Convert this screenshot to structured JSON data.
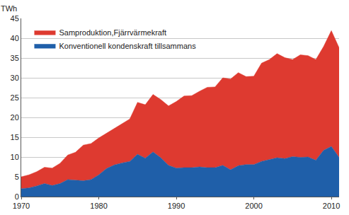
{
  "chart_data": {
    "type": "area",
    "stacked": true,
    "y_label": "TWh",
    "x": [
      1970,
      1971,
      1972,
      1973,
      1974,
      1975,
      1976,
      1977,
      1978,
      1979,
      1980,
      1981,
      1982,
      1983,
      1984,
      1985,
      1986,
      1987,
      1988,
      1989,
      1990,
      1991,
      1992,
      1993,
      1994,
      1995,
      1996,
      1997,
      1998,
      1999,
      2000,
      2001,
      2002,
      2003,
      2004,
      2005,
      2006,
      2007,
      2008,
      2009,
      2010,
      2011
    ],
    "series": [
      {
        "name": "Konventionell kondenskraft tillsammans",
        "color": "#1f5fa9",
        "values": [
          2.0,
          2.2,
          2.7,
          3.3,
          2.8,
          3.3,
          4.3,
          4.1,
          4.0,
          4.3,
          5.5,
          7.1,
          8.0,
          8.5,
          8.9,
          10.7,
          9.7,
          11.3,
          9.8,
          7.9,
          7.2,
          7.3,
          7.3,
          7.5,
          7.3,
          7.3,
          7.9,
          6.8,
          7.8,
          8.1,
          8.1,
          8.9,
          9.3,
          9.8,
          9.6,
          10.1,
          9.9,
          10.0,
          9.2,
          11.7,
          12.7,
          9.9
        ]
      },
      {
        "name": "Samproduktion,Fjärrvärmekraft",
        "color": "#de3a30",
        "values": [
          3.0,
          3.3,
          3.6,
          4.1,
          4.4,
          5.1,
          6.2,
          7.1,
          9.0,
          9.1,
          9.3,
          8.9,
          9.2,
          9.9,
          10.7,
          13.1,
          13.5,
          14.5,
          14.7,
          15.0,
          16.8,
          18.1,
          18.2,
          19.1,
          20.3,
          20.4,
          22.1,
          22.9,
          23.5,
          22.2,
          22.3,
          24.8,
          25.3,
          26.3,
          25.5,
          24.5,
          25.9,
          25.6,
          25.4,
          26.2,
          29.2,
          27.7
        ]
      }
    ],
    "xlim": [
      1970,
      2011
    ],
    "xticks": [
      1970,
      1980,
      1990,
      2000,
      2010
    ],
    "ylim": [
      0,
      45
    ],
    "yticks": [
      0,
      5,
      10,
      15,
      20,
      25,
      30,
      35,
      40,
      45
    ],
    "grid": true,
    "legend": "upper left"
  }
}
